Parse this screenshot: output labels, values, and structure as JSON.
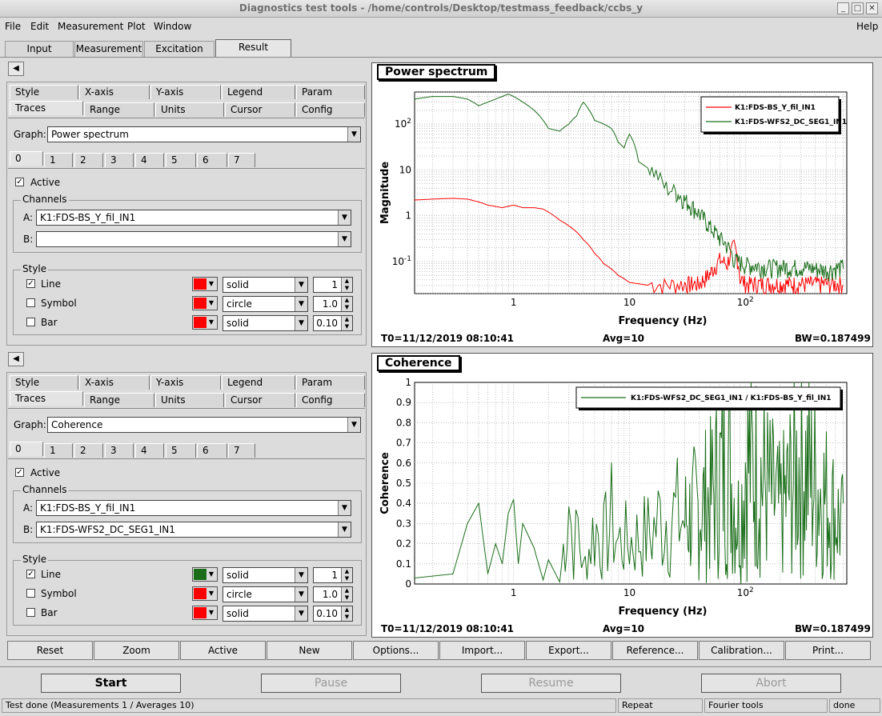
{
  "window": {
    "title": "Diagnostics test tools - /home/controls/Desktop/testmass_feedback/ccbs_y"
  },
  "menu": {
    "file": "File",
    "edit": "Edit",
    "measurement": "Measurement",
    "plot": "Plot",
    "window": "Window",
    "help": "Help"
  },
  "main_tabs": [
    "Input",
    "Measurement",
    "Excitation",
    "Result"
  ],
  "options_tabs": {
    "row1": [
      "Style",
      "X-axis",
      "Y-axis",
      "Legend",
      "Param"
    ],
    "row2": [
      "Traces",
      "Range",
      "Units",
      "Cursor",
      "Config"
    ]
  },
  "trace_tabs": [
    "0",
    "1",
    "2",
    "3",
    "4",
    "5",
    "6",
    "7"
  ],
  "graph_label": "Graph:",
  "active_label": "Active",
  "channels_label": "Channels",
  "style_label": "Style",
  "style_rows": {
    "line": "Line",
    "symbol": "Symbol",
    "bar": "Bar"
  },
  "panel1": {
    "graph": "Power spectrum",
    "channel_a": "K1:FDS-BS_Y_fil_IN1",
    "channel_b": "",
    "line_color": "#ff0000",
    "line_style": "solid",
    "line_width": "1",
    "symbol_color": "#ff0000",
    "symbol_style": "circle",
    "symbol_size": "1.0",
    "bar_color": "#ff0000",
    "bar_style": "solid",
    "bar_width": "0.10"
  },
  "panel2": {
    "graph": "Coherence",
    "channel_a": "K1:FDS-BS_Y_fil_IN1",
    "channel_b": "K1:FDS-WFS2_DC_SEG1_IN1",
    "line_color": "#1a6e1a",
    "line_style": "solid",
    "line_width": "1",
    "symbol_color": "#ff0000",
    "symbol_style": "circle",
    "symbol_size": "1.0",
    "bar_color": "#ff0000",
    "bar_style": "solid",
    "bar_width": "0.10"
  },
  "plot1": {
    "title": "Power spectrum",
    "t0": "T0=11/12/2019 08:10:41",
    "avg": "Avg=10",
    "bw": "BW=0.187499"
  },
  "plot2": {
    "title": "Coherence",
    "t0": "T0=11/12/2019 08:10:41",
    "avg": "Avg=10",
    "bw": "BW=0.187499"
  },
  "chart_data": [
    {
      "type": "line",
      "title": "Power spectrum",
      "xlabel": "Frequency (Hz)",
      "ylabel": "Magnitude",
      "x_scale": "log",
      "y_scale": "log",
      "xlim": [
        0.14,
        750
      ],
      "ylim": [
        0.02,
        500
      ],
      "grid": true,
      "legend": "top-right",
      "x_ticks": [
        "1",
        "10",
        "10^2"
      ],
      "y_ticks": [
        "10^-1",
        "1",
        "10",
        "10^2"
      ],
      "series": [
        {
          "name": "K1:FDS-BS_Y_fil_IN1",
          "color": "#ff0000",
          "x": [
            0.14,
            0.2,
            0.3,
            0.4,
            0.5,
            0.6,
            0.8,
            1.0,
            1.2,
            1.5,
            1.8,
            2.0,
            2.5,
            3,
            4,
            5,
            6,
            8,
            10,
            15,
            20,
            30,
            40,
            50,
            60,
            70,
            80,
            90,
            100,
            150,
            200,
            300,
            500,
            700
          ],
          "y": [
            2.2,
            2.3,
            2.4,
            2.3,
            2.0,
            1.7,
            1.5,
            1.7,
            1.5,
            1.5,
            1.4,
            1.2,
            0.8,
            0.6,
            0.3,
            0.15,
            0.09,
            0.05,
            0.035,
            0.03,
            0.028,
            0.03,
            0.03,
            0.05,
            0.1,
            0.08,
            0.2,
            0.04,
            0.03,
            0.03,
            0.03,
            0.03,
            0.03,
            0.03
          ]
        },
        {
          "name": "K1:FDS-WFS2_DC_SEG1_IN1",
          "color": "#1a6e1a",
          "x": [
            0.14,
            0.2,
            0.3,
            0.4,
            0.5,
            0.6,
            0.7,
            0.8,
            0.9,
            1.0,
            1.2,
            1.5,
            1.8,
            2.0,
            2.5,
            3,
            3.5,
            4,
            4.5,
            5,
            6,
            7,
            8,
            9,
            10,
            12,
            15,
            20,
            25,
            30,
            40,
            50,
            60,
            70,
            80,
            100,
            150,
            200,
            300,
            500,
            700
          ],
          "y": [
            350,
            400,
            400,
            350,
            250,
            300,
            350,
            400,
            450,
            400,
            300,
            200,
            120,
            80,
            70,
            100,
            150,
            300,
            200,
            120,
            100,
            80,
            40,
            30,
            60,
            15,
            10,
            4,
            3,
            2,
            1,
            0.5,
            0.3,
            0.2,
            0.1,
            0.08,
            0.07,
            0.07,
            0.07,
            0.06,
            0.07
          ]
        }
      ]
    },
    {
      "type": "line",
      "title": "Coherence",
      "xlabel": "Frequency (Hz)",
      "ylabel": "Coherence",
      "x_scale": "log",
      "xlim": [
        0.14,
        750
      ],
      "ylim": [
        0,
        1
      ],
      "grid": true,
      "legend": "top-right",
      "x_ticks": [
        "1",
        "10",
        "10^2"
      ],
      "y_ticks": [
        "0",
        "0.1",
        "0.2",
        "0.3",
        "0.4",
        "0.5",
        "0.6",
        "0.7",
        "0.8",
        "0.9",
        "1"
      ],
      "series": [
        {
          "name": "K1:FDS-WFS2_DC_SEG1_IN1 / K1:FDS-BS_Y_fil_IN1",
          "color": "#1a6e1a",
          "x": [
            0.14,
            0.3,
            0.4,
            0.5,
            0.6,
            0.7,
            0.8,
            0.9,
            1.0,
            1.1,
            1.2,
            1.5,
            1.8,
            2.0,
            2.5,
            3.0,
            3.3,
            3.6,
            4,
            5,
            6,
            7,
            8,
            10,
            15,
            20,
            30,
            50,
            70,
            90,
            100,
            150,
            200,
            300,
            500,
            700
          ],
          "y": [
            0.03,
            0.05,
            0.3,
            0.4,
            0.05,
            0.2,
            0.1,
            0.35,
            0.42,
            0.1,
            0.3,
            0.18,
            0.02,
            0.12,
            0.01,
            0.62,
            0.2,
            0.4,
            0.1,
            0.4,
            0.3,
            0.45,
            0.3,
            0.3,
            0.35,
            0.5,
            0.45,
            0.6,
            0.88,
            0.4,
            0.9,
            0.7,
            0.5,
            0.88,
            0.6,
            0.4
          ]
        }
      ]
    }
  ],
  "bottom_buttons": [
    "Reset",
    "Zoom",
    "Active",
    "New",
    "Options...",
    "Import...",
    "Export...",
    "Reference...",
    "Calibration...",
    "Print..."
  ],
  "control_buttons": {
    "start": "Start",
    "pause": "Pause",
    "resume": "Resume",
    "abort": "Abort"
  },
  "status": {
    "message": "Test done (Measurements 1 / Averages 10)",
    "mode": "Repeat",
    "tool": "Fourier tools",
    "state": "done"
  }
}
